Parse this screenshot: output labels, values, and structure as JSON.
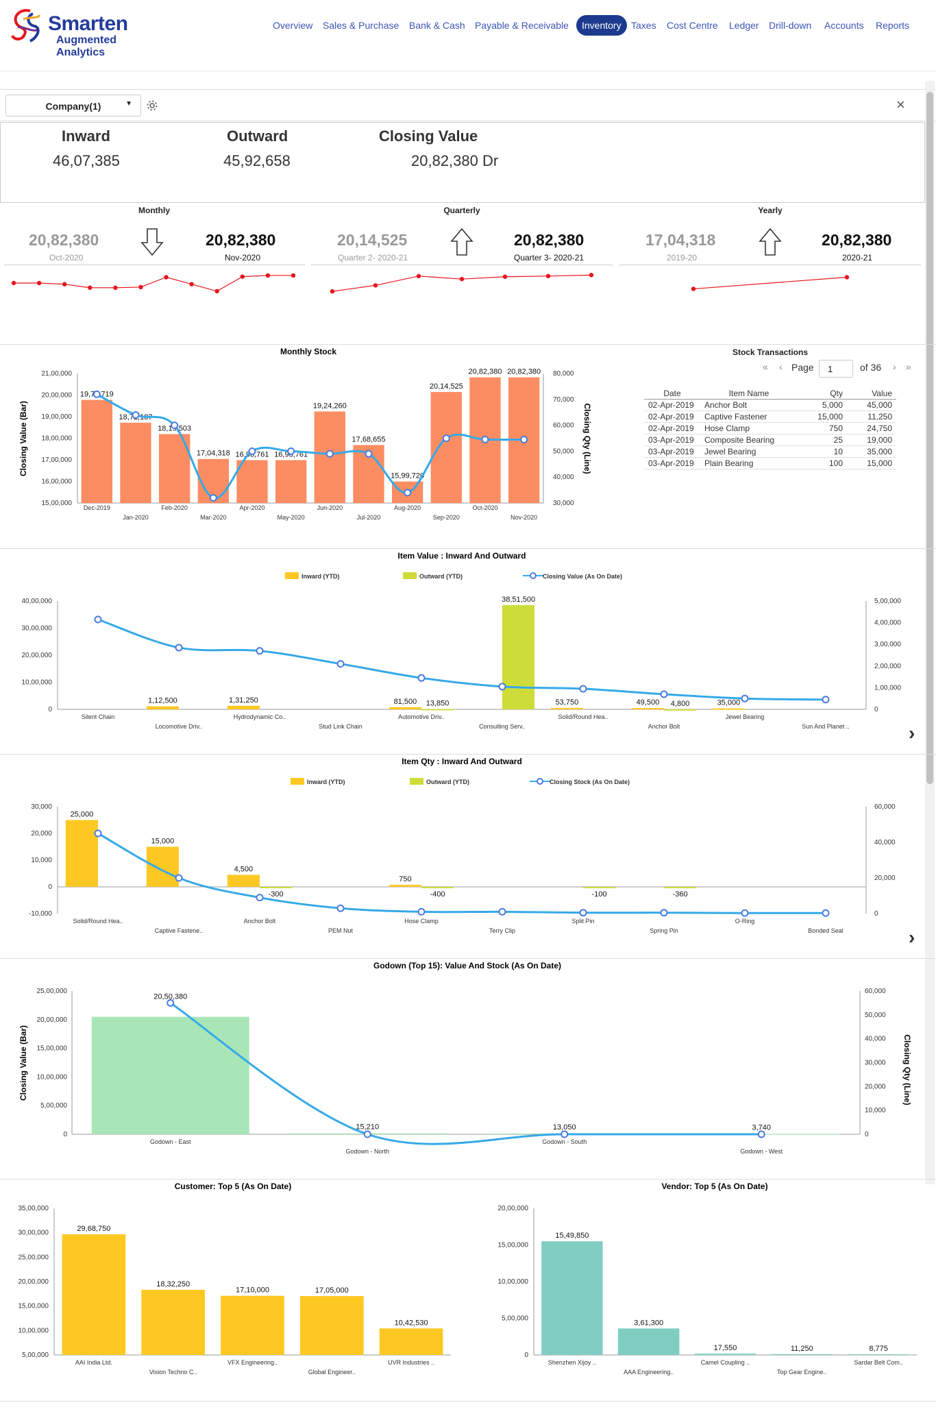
{
  "header": {
    "brand_line1": "Smarten",
    "brand_line2": "Augmented Analytics",
    "nav": [
      "Overview",
      "Sales & Purchase",
      "Bank & Cash",
      "Payable & Receivable",
      "Inventory",
      "Taxes",
      "Cost Centre",
      "Ledger",
      "Drill-down",
      "Accounts",
      "Reports"
    ],
    "active_nav": "Inventory"
  },
  "toolbar": {
    "company_select": "Company(1)",
    "close_symbol": "×"
  },
  "kpis": [
    {
      "label": "Inward",
      "value": "46,07,385"
    },
    {
      "label": "Outward",
      "value": "45,92,658"
    },
    {
      "label": "Closing Value",
      "value": "20,82,380 Dr"
    }
  ],
  "trends": [
    {
      "title": "Monthly",
      "prev_value": "20,82,380",
      "prev_period": "Oct-2020",
      "curr_value": "20,82,380",
      "curr_period": "Nov-2020",
      "direction": "down",
      "spark": [
        5,
        5,
        4.8,
        4.2,
        4.2,
        4.3,
        6,
        4.8,
        3.6,
        6.1,
        6.3,
        6.3
      ]
    },
    {
      "title": "Quarterly",
      "prev_value": "20,14,525",
      "prev_period": "Quarter 2- 2020-21",
      "curr_value": "20,82,380",
      "curr_period": "Quarter 3- 2020-21",
      "direction": "up",
      "spark": [
        1,
        2.8,
        5.6,
        4.7,
        5.4,
        5.6,
        5.9
      ]
    },
    {
      "title": "Yearly",
      "prev_value": "17,04,318",
      "prev_period": "2019-20",
      "curr_value": "20,82,380",
      "curr_period": "2020-21",
      "direction": "up",
      "spark": [
        1,
        2
      ]
    }
  ],
  "colors": {
    "accent": "#1c3a8e",
    "bar_salmon": "#fc8d62",
    "line_blue": "#35a9e8",
    "yellow": "#fec823",
    "lime": "#cddc39",
    "green": "#a8e6b8",
    "teal": "#7fcdc1",
    "red": "#e8141c"
  },
  "stock_transactions": {
    "title": "Stock Transactions",
    "page_label": "Page",
    "page": "1",
    "of_label": "of 36",
    "columns": [
      "Date",
      "Item Name",
      "Qty",
      "Value"
    ],
    "rows": [
      [
        "02-Apr-2019",
        "Anchor Bolt",
        "5,000",
        "45,000"
      ],
      [
        "02-Apr-2019",
        "Captive Fastener",
        "15,000",
        "11,250"
      ],
      [
        "02-Apr-2019",
        "Hose Clamp",
        "750",
        "24,750"
      ],
      [
        "03-Apr-2019",
        "Composite Bearing",
        "25",
        "19,000"
      ],
      [
        "03-Apr-2019",
        "Jewel Bearing",
        "10",
        "35,000"
      ],
      [
        "03-Apr-2019",
        "Plain Bearing",
        "100",
        "15,000"
      ]
    ]
  },
  "chart_data": [
    {
      "type": "bar",
      "title": "Monthly Stock",
      "ylabel": "Closing Value (Bar)",
      "y2label": "Closing Qty (Line)",
      "categories": [
        "Dec-2019",
        "Jan-2020",
        "Feb-2020",
        "Mar-2020",
        "Apr-2020",
        "May-2020",
        "Jun-2020",
        "Jul-2020",
        "Aug-2020",
        "Sep-2020",
        "Oct-2020",
        "Nov-2020"
      ],
      "bar_labels": [
        "19,77,719",
        "18,72,187",
        "18,19,503",
        "17,04,318",
        "16,98,761",
        "16,98,761",
        "19,24,260",
        "17,68,655",
        "15,99,720",
        "20,14,525",
        "20,82,380",
        "20,82,380"
      ],
      "series": [
        {
          "name": "Closing Value",
          "kind": "bar",
          "values": [
            1977719,
            1872187,
            1819503,
            1704318,
            1698761,
            1698761,
            1924260,
            1768655,
            1599720,
            2014525,
            2082380,
            2082380
          ]
        },
        {
          "name": "Closing Qty",
          "kind": "line",
          "values": [
            72000,
            64000,
            60000,
            32000,
            50000,
            50000,
            49000,
            49000,
            34000,
            55000,
            54500,
            54500
          ]
        }
      ],
      "ylim": [
        1500000,
        2100000
      ],
      "yticks": [
        "15,00,000",
        "16,00,000",
        "17,00,000",
        "18,00,000",
        "19,00,000",
        "20,00,000",
        "21,00,000"
      ],
      "y2lim": [
        30000,
        80000
      ],
      "y2ticks": [
        "30,000",
        "40,000",
        "50,000",
        "60,000",
        "70,000",
        "80,000"
      ]
    },
    {
      "type": "bar",
      "title": "Item Value : Inward And Outward",
      "legend": [
        "Inward (YTD)",
        "Outward (YTD)",
        "Closing Value (As On Date)"
      ],
      "categories": [
        "Silent Chain",
        "Locomotive Driv..",
        "Hydrodynamic Co..",
        "Stud Link Chain",
        "Automotive Driv..",
        "Consulting Serv..",
        "Solid/Round Hea..",
        "Anchor Bolt",
        "Jewel Bearing",
        "Sun And Planet .."
      ],
      "series": [
        {
          "name": "Inward (YTD)",
          "kind": "bar",
          "values": [
            0,
            112500,
            131250,
            0,
            81500,
            0,
            53750,
            49500,
            35000,
            0
          ],
          "labels": [
            "",
            "1,12,500",
            "1,31,250",
            "",
            "81,500",
            "",
            "53,750",
            "49,500",
            "35,000",
            ""
          ]
        },
        {
          "name": "Outward (YTD)",
          "kind": "bar",
          "values": [
            0,
            0,
            0,
            0,
            13850,
            3851500,
            0,
            4800,
            0,
            0
          ],
          "labels": [
            "",
            "",
            "",
            "",
            "13,850",
            "38,51,500",
            "",
            "4,800",
            "",
            ""
          ]
        },
        {
          "name": "Closing Value (As On Date)",
          "kind": "line",
          "values": [
            415000,
            285000,
            270000,
            210000,
            145000,
            105000,
            95000,
            70000,
            50000,
            45000
          ]
        }
      ],
      "ylim": [
        0,
        4000000
      ],
      "yticks": [
        "0",
        "10,00,000",
        "20,00,000",
        "30,00,000",
        "40,00,000"
      ],
      "y2lim": [
        0,
        500000
      ],
      "y2ticks": [
        "0",
        "1,00,000",
        "2,00,000",
        "3,00,000",
        "4,00,000",
        "5,00,000"
      ]
    },
    {
      "type": "bar",
      "title": "Item Qty : Inward And Outward",
      "legend": [
        "Inward (YTD)",
        "Outward (YTD)",
        "Closing Stock (As On Date)"
      ],
      "categories": [
        "Solid/Round Hea..",
        "Captive Fastene..",
        "Anchor Bolt",
        "PEM Nut",
        "Hose Clamp",
        "Terry Clip",
        "Split Pin",
        "Spring Pin",
        "O-Ring",
        "Bonded Seal"
      ],
      "series": [
        {
          "name": "Inward (YTD)",
          "kind": "bar",
          "values": [
            25000,
            15000,
            4500,
            0,
            750,
            0,
            0,
            0,
            0,
            0
          ],
          "labels": [
            "25,000",
            "15,000",
            "4,500",
            "",
            "750",
            "",
            "",
            "",
            "",
            ""
          ]
        },
        {
          "name": "Outward (YTD)",
          "kind": "bar",
          "values": [
            0,
            0,
            -300,
            0,
            -400,
            0,
            -100,
            -360,
            0,
            0
          ],
          "labels": [
            "",
            "",
            "-300",
            "",
            "-400",
            "",
            "-100",
            "-360",
            "",
            ""
          ]
        },
        {
          "name": "Closing Stock (As On Date)",
          "kind": "line",
          "values": [
            45000,
            20000,
            9000,
            3000,
            1000,
            1000,
            500,
            500,
            300,
            300
          ]
        }
      ],
      "ylim": [
        -10000,
        30000
      ],
      "yticks": [
        "-10,000",
        "0",
        "10,000",
        "20,000",
        "30,000"
      ],
      "y2lim": [
        0,
        60000
      ],
      "y2ticks": [
        "0",
        "20,000",
        "40,000",
        "60,000"
      ]
    },
    {
      "type": "bar",
      "title": "Godown (Top 15): Value And Stock (As On Date)",
      "ylabel": "Closing Value (Bar)",
      "y2label": "Closing Qty (Line)",
      "categories": [
        "Godown - East",
        "Godown - North",
        "Godown - South",
        "Godown - West"
      ],
      "series": [
        {
          "name": "Closing Value",
          "kind": "bar",
          "values": [
            2050380,
            15210,
            13050,
            3740
          ],
          "labels": [
            "20,50,380",
            "15,210",
            "13,050",
            "3,740"
          ]
        },
        {
          "name": "Closing Qty",
          "kind": "line",
          "values": [
            55000,
            0,
            0,
            0
          ]
        }
      ],
      "ylim": [
        0,
        2500000
      ],
      "yticks": [
        "0",
        "5,00,000",
        "10,00,000",
        "15,00,000",
        "20,00,000",
        "25,00,000"
      ],
      "y2lim": [
        0,
        60000
      ],
      "y2ticks": [
        "0",
        "10,000",
        "20,000",
        "30,000",
        "40,000",
        "50,000",
        "60,000"
      ]
    },
    {
      "type": "bar",
      "title": "Customer: Top 5 (As On Date)",
      "categories": [
        "AAI India Ltd.",
        "Vision Techno C..",
        "VFX Engineering..",
        "Global Engineer..",
        "UVR Industries .."
      ],
      "values": [
        2968750,
        1832250,
        1710000,
        1705000,
        1042530
      ],
      "labels": [
        "29,68,750",
        "18,32,250",
        "17,10,000",
        "17,05,000",
        "10,42,530"
      ],
      "ylim": [
        500000,
        3500000
      ],
      "yticks": [
        "5,00,000",
        "10,00,000",
        "15,00,000",
        "20,00,000",
        "25,00,000",
        "30,00,000",
        "35,00,000"
      ]
    },
    {
      "type": "bar",
      "title": "Vendor: Top 5 (As On Date)",
      "categories": [
        "Shenzhen Xijoy ..",
        "AAA Engineering..",
        "Camel Coupling ..",
        "Top Gear Engine..",
        "Sardar Belt Com.."
      ],
      "values": [
        1549850,
        361300,
        17550,
        11250,
        8775
      ],
      "labels": [
        "15,49,850",
        "3,61,300",
        "17,550",
        "11,250",
        "8,775"
      ],
      "ylim": [
        0,
        2000000
      ],
      "yticks": [
        "0",
        "5,00,000",
        "10,00,000",
        "15,00,000",
        "20,00,000"
      ]
    }
  ]
}
